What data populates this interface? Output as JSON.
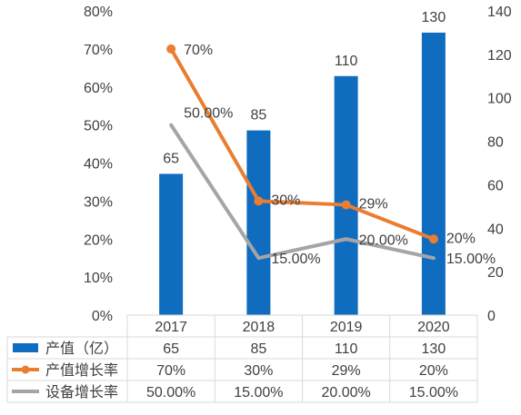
{
  "chart_data": {
    "type": "bar",
    "categories": [
      "2017",
      "2018",
      "2019",
      "2020"
    ],
    "series": [
      {
        "name": "产值（亿）",
        "type": "bar",
        "axis": "right",
        "values": [
          65,
          85,
          110,
          130
        ],
        "value_labels": [
          "65",
          "85",
          "110",
          "130"
        ],
        "color": "#0f6cbf"
      },
      {
        "name": "产值增长率",
        "type": "line",
        "axis": "left",
        "values": [
          70,
          30,
          29,
          20
        ],
        "value_labels": [
          "70%",
          "30%",
          "29%",
          "20%"
        ],
        "color": "#e97e32",
        "marker": "circle"
      },
      {
        "name": "设备增长率",
        "type": "line",
        "axis": "left",
        "values": [
          50,
          15,
          20,
          15
        ],
        "value_labels": [
          "50.00%",
          "15.00%",
          "20.00%",
          "15.00%"
        ],
        "color": "#a5a5a5",
        "marker": "none"
      }
    ],
    "left_axis": {
      "range": [
        0,
        80
      ],
      "ticks": [
        0,
        10,
        20,
        30,
        40,
        50,
        60,
        70,
        80
      ],
      "tick_labels": [
        "0%",
        "10%",
        "20%",
        "30%",
        "40%",
        "50%",
        "60%",
        "70%",
        "80%"
      ]
    },
    "right_axis": {
      "range": [
        0,
        140
      ],
      "ticks": [
        0,
        20,
        40,
        60,
        80,
        100,
        120,
        140
      ],
      "tick_labels": [
        "0",
        "20",
        "40",
        "60",
        "80",
        "100",
        "120",
        "140"
      ]
    },
    "grid": false,
    "legend": "data-table-bottom"
  }
}
